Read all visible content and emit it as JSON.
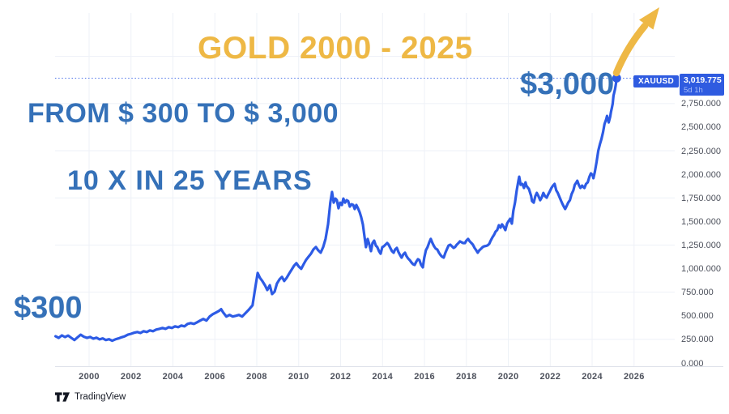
{
  "title": {
    "text": "GOLD 2000 - 2025"
  },
  "annotations": {
    "line1": "FROM $ 300 TO $ 3,000",
    "line2": "10 X IN 25 YEARS",
    "start_label": "$300",
    "end_label": "$3,000"
  },
  "badge": {
    "symbol": "XAUUSD",
    "price": "3,019.775",
    "timeframe": "5d 1h"
  },
  "watermark": {
    "brand": "TradingView"
  },
  "colors": {
    "gold": "#EEB845",
    "blue_text": "#3571B8",
    "line_blue": "#2D5BE5",
    "badge_bg": "#2F5BE0",
    "badge_sub": "#A9BDF8",
    "axis_text": "#4D515C",
    "grid": "#EEF1F7",
    "axis_line": "#DFE2EA",
    "logo": "#131722",
    "background": "#FFFFFF"
  },
  "price_scale": {
    "labels": [
      "2,750.000",
      "2,500.000",
      "2,250.000",
      "2,000.000",
      "1,750.000",
      "1,500.000",
      "1,250.000",
      "1,000.000",
      "750.000",
      "500.000",
      "250.000",
      "0.000"
    ],
    "values": [
      2750,
      2500,
      2250,
      2000,
      1750,
      1500,
      1250,
      1000,
      750,
      500,
      250,
      0
    ]
  },
  "time_scale": {
    "labels": [
      "2000",
      "2002",
      "2004",
      "2006",
      "2008",
      "2010",
      "2012",
      "2014",
      "2016",
      "2018",
      "2020",
      "2022",
      "2024",
      "2026"
    ],
    "years": [
      2000,
      2002,
      2004,
      2006,
      2008,
      2010,
      2012,
      2014,
      2016,
      2018,
      2020,
      2022,
      2024,
      2026
    ]
  },
  "grid": {
    "h_price_lines": [
      250,
      750,
      1250,
      1750,
      2250,
      2750,
      3250
    ]
  },
  "chart_data": {
    "type": "line",
    "title": "GOLD 2000 - 2025",
    "symbol": "XAUUSD",
    "x_unit": "year",
    "y_unit": "USD per ounce",
    "x_range": [
      1998.4,
      2026
    ],
    "y_range": [
      0,
      3250
    ],
    "grid": true,
    "legend_position": "none",
    "last_price": 3019.775,
    "dotted_level": 3019.775,
    "points": [
      [
        1998.4,
        283
      ],
      [
        1998.55,
        266
      ],
      [
        1998.7,
        292
      ],
      [
        1998.85,
        275
      ],
      [
        1999.0,
        290
      ],
      [
        1999.15,
        266
      ],
      [
        1999.3,
        243
      ],
      [
        1999.45,
        272
      ],
      [
        1999.6,
        300
      ],
      [
        1999.75,
        278
      ],
      [
        1999.9,
        266
      ],
      [
        2000.05,
        276
      ],
      [
        2000.2,
        258
      ],
      [
        2000.35,
        268
      ],
      [
        2000.5,
        250
      ],
      [
        2000.65,
        260
      ],
      [
        2000.8,
        243
      ],
      [
        2000.95,
        252
      ],
      [
        2001.1,
        235
      ],
      [
        2001.25,
        250
      ],
      [
        2001.4,
        260
      ],
      [
        2001.55,
        272
      ],
      [
        2001.7,
        283
      ],
      [
        2001.85,
        300
      ],
      [
        2002.0,
        309
      ],
      [
        2002.15,
        320
      ],
      [
        2002.3,
        328
      ],
      [
        2002.45,
        318
      ],
      [
        2002.6,
        337
      ],
      [
        2002.75,
        328
      ],
      [
        2002.9,
        345
      ],
      [
        2003.05,
        337
      ],
      [
        2003.2,
        354
      ],
      [
        2003.35,
        362
      ],
      [
        2003.5,
        371
      ],
      [
        2003.65,
        362
      ],
      [
        2003.8,
        380
      ],
      [
        2003.95,
        371
      ],
      [
        2004.1,
        388
      ],
      [
        2004.25,
        380
      ],
      [
        2004.4,
        397
      ],
      [
        2004.55,
        388
      ],
      [
        2004.7,
        414
      ],
      [
        2004.85,
        423
      ],
      [
        2005.0,
        414
      ],
      [
        2005.15,
        431
      ],
      [
        2005.3,
        449
      ],
      [
        2005.45,
        466
      ],
      [
        2005.6,
        449
      ],
      [
        2005.75,
        492
      ],
      [
        2005.9,
        517
      ],
      [
        2006.05,
        534
      ],
      [
        2006.2,
        552
      ],
      [
        2006.3,
        570
      ],
      [
        2006.4,
        534
      ],
      [
        2006.55,
        492
      ],
      [
        2006.7,
        509
      ],
      [
        2006.85,
        492
      ],
      [
        2007.0,
        500
      ],
      [
        2007.15,
        509
      ],
      [
        2007.3,
        492
      ],
      [
        2007.45,
        526
      ],
      [
        2007.6,
        560
      ],
      [
        2007.8,
        612
      ],
      [
        2007.92,
        783
      ],
      [
        2008.04,
        954
      ],
      [
        2008.15,
        903
      ],
      [
        2008.27,
        867
      ],
      [
        2008.39,
        824
      ],
      [
        2008.5,
        773
      ],
      [
        2008.62,
        824
      ],
      [
        2008.73,
        730
      ],
      [
        2008.85,
        756
      ],
      [
        2008.96,
        842
      ],
      [
        2009.08,
        886
      ],
      [
        2009.2,
        912
      ],
      [
        2009.31,
        869
      ],
      [
        2009.43,
        904
      ],
      [
        2009.54,
        947
      ],
      [
        2009.66,
        989
      ],
      [
        2009.78,
        1032
      ],
      [
        2009.89,
        1058
      ],
      [
        2010.0,
        1023
      ],
      [
        2010.12,
        998
      ],
      [
        2010.24,
        1049
      ],
      [
        2010.35,
        1092
      ],
      [
        2010.47,
        1126
      ],
      [
        2010.59,
        1160
      ],
      [
        2010.7,
        1203
      ],
      [
        2010.82,
        1229
      ],
      [
        2010.93,
        1195
      ],
      [
        2011.05,
        1169
      ],
      [
        2011.17,
        1229
      ],
      [
        2011.28,
        1315
      ],
      [
        2011.4,
        1470
      ],
      [
        2011.51,
        1700
      ],
      [
        2011.59,
        1812
      ],
      [
        2011.67,
        1700
      ],
      [
        2011.75,
        1743
      ],
      [
        2011.82,
        1726
      ],
      [
        2011.9,
        1640
      ],
      [
        2011.98,
        1700
      ],
      [
        2012.06,
        1675
      ],
      [
        2012.13,
        1743
      ],
      [
        2012.21,
        1700
      ],
      [
        2012.29,
        1726
      ],
      [
        2012.36,
        1717
      ],
      [
        2012.44,
        1658
      ],
      [
        2012.52,
        1683
      ],
      [
        2012.6,
        1675
      ],
      [
        2012.67,
        1632
      ],
      [
        2012.75,
        1675
      ],
      [
        2012.83,
        1640
      ],
      [
        2012.91,
        1597
      ],
      [
        2012.98,
        1546
      ],
      [
        2013.06,
        1469
      ],
      [
        2013.14,
        1340
      ],
      [
        2013.21,
        1228
      ],
      [
        2013.29,
        1314
      ],
      [
        2013.37,
        1254
      ],
      [
        2013.45,
        1185
      ],
      [
        2013.52,
        1271
      ],
      [
        2013.6,
        1297
      ],
      [
        2013.68,
        1245
      ],
      [
        2013.75,
        1228
      ],
      [
        2013.83,
        1185
      ],
      [
        2013.91,
        1159
      ],
      [
        2013.99,
        1228
      ],
      [
        2014.06,
        1237
      ],
      [
        2014.14,
        1254
      ],
      [
        2014.22,
        1271
      ],
      [
        2014.29,
        1254
      ],
      [
        2014.37,
        1219
      ],
      [
        2014.45,
        1185
      ],
      [
        2014.53,
        1169
      ],
      [
        2014.6,
        1203
      ],
      [
        2014.68,
        1220
      ],
      [
        2014.76,
        1177
      ],
      [
        2014.84,
        1142
      ],
      [
        2014.91,
        1117
      ],
      [
        2014.99,
        1151
      ],
      [
        2015.07,
        1169
      ],
      [
        2015.14,
        1134
      ],
      [
        2015.22,
        1108
      ],
      [
        2015.3,
        1090
      ],
      [
        2015.38,
        1065
      ],
      [
        2015.45,
        1048
      ],
      [
        2015.53,
        1039
      ],
      [
        2015.61,
        1074
      ],
      [
        2015.69,
        1100
      ],
      [
        2015.76,
        1090
      ],
      [
        2015.84,
        1039
      ],
      [
        2015.92,
        1014
      ],
      [
        2015.99,
        1117
      ],
      [
        2016.07,
        1195
      ],
      [
        2016.15,
        1229
      ],
      [
        2016.23,
        1280
      ],
      [
        2016.3,
        1315
      ],
      [
        2016.38,
        1271
      ],
      [
        2016.46,
        1237
      ],
      [
        2016.54,
        1211
      ],
      [
        2016.61,
        1203
      ],
      [
        2016.69,
        1169
      ],
      [
        2016.77,
        1142
      ],
      [
        2016.84,
        1126
      ],
      [
        2016.92,
        1117
      ],
      [
        2017.0,
        1169
      ],
      [
        2017.08,
        1211
      ],
      [
        2017.15,
        1245
      ],
      [
        2017.23,
        1254
      ],
      [
        2017.31,
        1237
      ],
      [
        2017.39,
        1220
      ],
      [
        2017.46,
        1229
      ],
      [
        2017.54,
        1254
      ],
      [
        2017.62,
        1271
      ],
      [
        2017.69,
        1289
      ],
      [
        2017.77,
        1280
      ],
      [
        2017.85,
        1271
      ],
      [
        2017.93,
        1271
      ],
      [
        2018.0,
        1297
      ],
      [
        2018.08,
        1315
      ],
      [
        2018.16,
        1289
      ],
      [
        2018.24,
        1271
      ],
      [
        2018.31,
        1254
      ],
      [
        2018.39,
        1220
      ],
      [
        2018.47,
        1195
      ],
      [
        2018.54,
        1169
      ],
      [
        2018.62,
        1195
      ],
      [
        2018.7,
        1211
      ],
      [
        2018.78,
        1229
      ],
      [
        2018.85,
        1237
      ],
      [
        2018.93,
        1240
      ],
      [
        2019.01,
        1246
      ],
      [
        2019.09,
        1263
      ],
      [
        2019.16,
        1297
      ],
      [
        2019.24,
        1331
      ],
      [
        2019.32,
        1358
      ],
      [
        2019.39,
        1392
      ],
      [
        2019.47,
        1409
      ],
      [
        2019.55,
        1460
      ],
      [
        2019.63,
        1435
      ],
      [
        2019.7,
        1470
      ],
      [
        2019.78,
        1443
      ],
      [
        2019.86,
        1409
      ],
      [
        2019.94,
        1477
      ],
      [
        2020.01,
        1503
      ],
      [
        2020.09,
        1529
      ],
      [
        2020.17,
        1477
      ],
      [
        2020.24,
        1615
      ],
      [
        2020.32,
        1700
      ],
      [
        2020.4,
        1829
      ],
      [
        2020.48,
        1932
      ],
      [
        2020.52,
        1975
      ],
      [
        2020.59,
        1889
      ],
      [
        2020.67,
        1898
      ],
      [
        2020.75,
        1855
      ],
      [
        2020.82,
        1915
      ],
      [
        2020.86,
        1880
      ],
      [
        2020.94,
        1855
      ],
      [
        2020.98,
        1846
      ],
      [
        2021.02,
        1820
      ],
      [
        2021.09,
        1770
      ],
      [
        2021.13,
        1717
      ],
      [
        2021.21,
        1700
      ],
      [
        2021.29,
        1769
      ],
      [
        2021.36,
        1803
      ],
      [
        2021.44,
        1769
      ],
      [
        2021.52,
        1726
      ],
      [
        2021.59,
        1752
      ],
      [
        2021.67,
        1803
      ],
      [
        2021.75,
        1769
      ],
      [
        2021.83,
        1752
      ],
      [
        2021.9,
        1786
      ],
      [
        2021.98,
        1820
      ],
      [
        2022.06,
        1855
      ],
      [
        2022.13,
        1880
      ],
      [
        2022.21,
        1898
      ],
      [
        2022.29,
        1829
      ],
      [
        2022.36,
        1803
      ],
      [
        2022.44,
        1760
      ],
      [
        2022.52,
        1717
      ],
      [
        2022.59,
        1683
      ],
      [
        2022.67,
        1649
      ],
      [
        2022.71,
        1632
      ],
      [
        2022.79,
        1666
      ],
      [
        2022.86,
        1700
      ],
      [
        2022.94,
        1726
      ],
      [
        2023.02,
        1790
      ],
      [
        2023.1,
        1829
      ],
      [
        2023.17,
        1889
      ],
      [
        2023.25,
        1915
      ],
      [
        2023.29,
        1932
      ],
      [
        2023.36,
        1889
      ],
      [
        2023.44,
        1855
      ],
      [
        2023.52,
        1880
      ],
      [
        2023.59,
        1863
      ],
      [
        2023.63,
        1855
      ],
      [
        2023.71,
        1898
      ],
      [
        2023.79,
        1915
      ],
      [
        2023.87,
        1975
      ],
      [
        2023.94,
        2010
      ],
      [
        2024.02,
        1993
      ],
      [
        2024.06,
        1958
      ],
      [
        2024.13,
        2027
      ],
      [
        2024.21,
        2130
      ],
      [
        2024.29,
        2250
      ],
      [
        2024.37,
        2318
      ],
      [
        2024.44,
        2370
      ],
      [
        2024.52,
        2447
      ],
      [
        2024.59,
        2533
      ],
      [
        2024.67,
        2585
      ],
      [
        2024.71,
        2619
      ],
      [
        2024.75,
        2576
      ],
      [
        2024.79,
        2550
      ],
      [
        2024.86,
        2610
      ],
      [
        2024.9,
        2662
      ],
      [
        2024.94,
        2705
      ],
      [
        2024.98,
        2748
      ],
      [
        2025.02,
        2834
      ],
      [
        2025.09,
        2902
      ],
      [
        2025.13,
        2954
      ],
      [
        2025.17,
        3019.775
      ]
    ]
  }
}
